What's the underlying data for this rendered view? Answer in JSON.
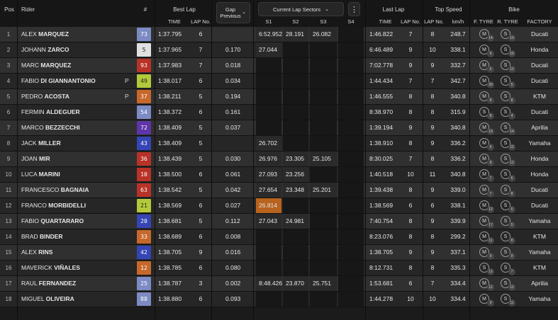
{
  "header": {
    "pos": "Pos",
    "rider": "Rider",
    "number": "#",
    "best_lap": "Best Lap",
    "time": "TIME",
    "lap_no": "LAP No.",
    "gap_dropdown": "Gap Previous",
    "sectors_dropdown": "Current Lap Sectors",
    "more": "⋮",
    "s1": "S1",
    "s2": "S2",
    "s3": "S3",
    "s4": "S4",
    "last_lap": "Last Lap",
    "last_time": "TIME",
    "last_lap_no": "LAP No.",
    "top_speed": "Top Speed",
    "top_lap_no": "LAP No.",
    "kmh": "km/h",
    "bike": "Bike",
    "f_tyre": "F. TYRE",
    "r_tyre": "R. TYRE",
    "factory": "FACTORY"
  },
  "rows": [
    {
      "pos": "1",
      "first": "ALEX ",
      "last": "MARQUEZ",
      "flag": "",
      "num": "73",
      "num_bg": "#7c8bc4",
      "num_fg": "#ffffff",
      "best": "1:37.795",
      "best_lap": "6",
      "gap": "",
      "s1": "6:52.952",
      "s2": "28.191",
      "s3": "26.082",
      "s4": "",
      "s1_bg": "#2a2a2a",
      "last_time": "1:46.822",
      "last_lap": "7",
      "ts_lap": "8",
      "kmh": "248.7",
      "ft": "M",
      "ft_sub": "14",
      "rt": "S",
      "rt_sub": "10",
      "factory": "Ducati"
    },
    {
      "pos": "2",
      "first": "JOHANN ",
      "last": "ZARCO",
      "flag": "",
      "num": "5",
      "num_bg": "#e0e0e0",
      "num_fg": "#222222",
      "best": "1:37.965",
      "best_lap": "7",
      "gap": "0.170",
      "s1": "27.044",
      "s2": "",
      "s3": "",
      "s4": "",
      "s1_bg": "#2a2a2a",
      "last_time": "6:46.489",
      "last_lap": "9",
      "ts_lap": "10",
      "kmh": "338.1",
      "ft": "M",
      "ft_sub": "9",
      "rt": "S",
      "rt_sub": "10",
      "factory": "Honda"
    },
    {
      "pos": "3",
      "first": "MARC ",
      "last": "MARQUEZ",
      "flag": "",
      "num": "93",
      "num_bg": "#b83227",
      "num_fg": "#ffffff",
      "best": "1:37.983",
      "best_lap": "7",
      "gap": "0.018",
      "s1": "",
      "s2": "",
      "s3": "",
      "s4": "",
      "s1_bg": "#2a2a2a",
      "last_time": "7:02.778",
      "last_lap": "9",
      "ts_lap": "9",
      "kmh": "332.7",
      "ft": "M",
      "ft_sub": "6",
      "rt": "S",
      "rt_sub": "12",
      "factory": "Ducati"
    },
    {
      "pos": "4",
      "first": "FABIO ",
      "last": "DI GIANNANTONIO",
      "flag": "P",
      "num": "49",
      "num_bg": "#b3c93a",
      "num_fg": "#222222",
      "best": "1:38.017",
      "best_lap": "6",
      "gap": "0.034",
      "s1": "",
      "s2": "",
      "s3": "",
      "s4": "",
      "s1_bg": "#2a2a2a",
      "last_time": "1:44.434",
      "last_lap": "7",
      "ts_lap": "7",
      "kmh": "342.7",
      "ft": "M",
      "ft_sub": "20",
      "rt": "S",
      "rt_sub": "5",
      "factory": "Ducati"
    },
    {
      "pos": "5",
      "first": "PEDRO ",
      "last": "ACOSTA",
      "flag": "P",
      "num": "37",
      "num_bg": "#c7682b",
      "num_fg": "#ffffff",
      "best": "1:38.211",
      "best_lap": "5",
      "gap": "0.194",
      "s1": "",
      "s2": "",
      "s3": "",
      "s4": "",
      "s1_bg": "#2a2a2a",
      "last_time": "1:46.555",
      "last_lap": "8",
      "ts_lap": "8",
      "kmh": "340.8",
      "ft": "M",
      "ft_sub": "8",
      "rt": "S",
      "rt_sub": "8",
      "factory": "KTM"
    },
    {
      "pos": "6",
      "first": "FERMIN ",
      "last": "ALDEGUER",
      "flag": "",
      "num": "54",
      "num_bg": "#7c8bc4",
      "num_fg": "#ffffff",
      "best": "1:38.372",
      "best_lap": "6",
      "gap": "0.161",
      "s1": "",
      "s2": "",
      "s3": "",
      "s4": "",
      "s1_bg": "#2a2a2a",
      "last_time": "8:38.970",
      "last_lap": "8",
      "ts_lap": "8",
      "kmh": "315.9",
      "ft": "S",
      "ft_sub": "8",
      "rt": "S",
      "rt_sub": "4",
      "factory": "Ducati"
    },
    {
      "pos": "7",
      "first": "MARCO ",
      "last": "BEZZECCHI",
      "flag": "",
      "num": "72",
      "num_bg": "#5e35a8",
      "num_fg": "#ffffff",
      "best": "1:38.409",
      "best_lap": "5",
      "gap": "0.037",
      "s1": "",
      "s2": "",
      "s3": "",
      "s4": "",
      "s1_bg": "#2a2a2a",
      "last_time": "1:39.194",
      "last_lap": "9",
      "ts_lap": "9",
      "kmh": "340.8",
      "ft": "M",
      "ft_sub": "19",
      "rt": "S",
      "rt_sub": "14",
      "factory": "Aprilia"
    },
    {
      "pos": "8",
      "first": "JACK ",
      "last": "MILLER",
      "flag": "",
      "num": "43",
      "num_bg": "#3545b5",
      "num_fg": "#ffffff",
      "best": "1:38.409",
      "best_lap": "5",
      "gap": "",
      "s1": "26.702",
      "s2": "",
      "s3": "",
      "s4": "",
      "s1_bg": "#2a2a2a",
      "last_time": "1:38.910",
      "last_lap": "8",
      "ts_lap": "9",
      "kmh": "336.2",
      "ft": "M",
      "ft_sub": "9",
      "rt": "S",
      "rt_sub": "12",
      "factory": "Yamaha"
    },
    {
      "pos": "9",
      "first": "JOAN ",
      "last": "MIR",
      "flag": "",
      "num": "36",
      "num_bg": "#b83227",
      "num_fg": "#ffffff",
      "best": "1:38.439",
      "best_lap": "5",
      "gap": "0.030",
      "s1": "26.976",
      "s2": "23.305",
      "s3": "25.105",
      "s4": "",
      "s1_bg": "#2a2a2a",
      "last_time": "8:30.025",
      "last_lap": "7",
      "ts_lap": "8",
      "kmh": "336.2",
      "ft": "M",
      "ft_sub": "8",
      "rt": "S",
      "rt_sub": "12",
      "factory": "Honda"
    },
    {
      "pos": "10",
      "first": "LUCA ",
      "last": "MARINI",
      "flag": "",
      "num": "10",
      "num_bg": "#b83227",
      "num_fg": "#ffffff",
      "best": "1:38.500",
      "best_lap": "6",
      "gap": "0.061",
      "s1": "27.093",
      "s2": "23.256",
      "s3": "",
      "s4": "",
      "s1_bg": "#2a2a2a",
      "last_time": "1:40.518",
      "last_lap": "10",
      "ts_lap": "11",
      "kmh": "340.8",
      "ft": "M",
      "ft_sub": "7",
      "rt": "S",
      "rt_sub": "6",
      "factory": "Honda"
    },
    {
      "pos": "11",
      "first": "FRANCESCO ",
      "last": "BAGNAIA",
      "flag": "",
      "num": "63",
      "num_bg": "#b83227",
      "num_fg": "#ffffff",
      "best": "1:38.542",
      "best_lap": "5",
      "gap": "0.042",
      "s1": "27.654",
      "s2": "23.348",
      "s3": "25.201",
      "s4": "",
      "s1_bg": "#2a2a2a",
      "last_time": "1:39.438",
      "last_lap": "8",
      "ts_lap": "9",
      "kmh": "339.0",
      "ft": "M",
      "ft_sub": "7",
      "rt": "S",
      "rt_sub": "8",
      "factory": "Ducati"
    },
    {
      "pos": "12",
      "first": "FRANCO ",
      "last": "MORBIDELLI",
      "flag": "",
      "num": "21",
      "num_bg": "#b3c93a",
      "num_fg": "#222222",
      "best": "1:38.569",
      "best_lap": "6",
      "gap": "0.027",
      "s1": "26.814",
      "s2": "",
      "s3": "",
      "s4": "",
      "s1_bg": "#b8631e",
      "last_time": "1:38.569",
      "last_lap": "6",
      "ts_lap": "6",
      "kmh": "338.1",
      "ft": "M",
      "ft_sub": "12",
      "rt": "S",
      "rt_sub": "5",
      "factory": "Ducati"
    },
    {
      "pos": "13",
      "first": "FABIO ",
      "last": "QUARTARARO",
      "flag": "",
      "num": "20",
      "num_bg": "#3545b5",
      "num_fg": "#ffffff",
      "best": "1:38.681",
      "best_lap": "5",
      "gap": "0.112",
      "s1": "27.043",
      "s2": "24.981",
      "s3": "",
      "s4": "",
      "s1_bg": "#2a2a2a",
      "last_time": "7:40.754",
      "last_lap": "8",
      "ts_lap": "9",
      "kmh": "339.9",
      "ft": "M",
      "ft_sub": "17",
      "rt": "S",
      "rt_sub": "5",
      "factory": "Yamaha"
    },
    {
      "pos": "14",
      "first": "BRAD ",
      "last": "BINDER",
      "flag": "",
      "num": "33",
      "num_bg": "#c7682b",
      "num_fg": "#ffffff",
      "best": "1:38.689",
      "best_lap": "6",
      "gap": "0.008",
      "s1": "",
      "s2": "",
      "s3": "",
      "s4": "",
      "s1_bg": "#2a2a2a",
      "last_time": "8:23.076",
      "last_lap": "8",
      "ts_lap": "8",
      "kmh": "299.2",
      "ft": "M",
      "ft_sub": "11",
      "rt": "S",
      "rt_sub": "8",
      "factory": "KTM"
    },
    {
      "pos": "15",
      "first": "ALEX ",
      "last": "RINS",
      "flag": "",
      "num": "42",
      "num_bg": "#3545b5",
      "num_fg": "#ffffff",
      "best": "1:38.705",
      "best_lap": "9",
      "gap": "0.016",
      "s1": "",
      "s2": "",
      "s3": "",
      "s4": "",
      "s1_bg": "#2a2a2a",
      "last_time": "1:38.705",
      "last_lap": "9",
      "ts_lap": "9",
      "kmh": "337.1",
      "ft": "M",
      "ft_sub": "9",
      "rt": "S",
      "rt_sub": "9",
      "factory": "Yamaha"
    },
    {
      "pos": "16",
      "first": "MAVERICK ",
      "last": "VIÑALES",
      "flag": "",
      "num": "12",
      "num_bg": "#c7682b",
      "num_fg": "#ffffff",
      "best": "1:38.785",
      "best_lap": "6",
      "gap": "0.080",
      "s1": "",
      "s2": "",
      "s3": "",
      "s4": "",
      "s1_bg": "#2a2a2a",
      "last_time": "8:12.731",
      "last_lap": "8",
      "ts_lap": "8",
      "kmh": "335.3",
      "ft": "S",
      "ft_sub": "12",
      "rt": "S",
      "rt_sub": "7",
      "factory": "KTM"
    },
    {
      "pos": "17",
      "first": "RAUL ",
      "last": "FERNANDEZ",
      "flag": "",
      "num": "25",
      "num_bg": "#7c8bc4",
      "num_fg": "#ffffff",
      "best": "1:38.787",
      "best_lap": "3",
      "gap": "0.002",
      "s1": "8:48.426",
      "s2": "23.870",
      "s3": "25.751",
      "s4": "",
      "s1_bg": "#2a2a2a",
      "last_time": "1:53.681",
      "last_lap": "6",
      "ts_lap": "7",
      "kmh": "334.4",
      "ft": "M",
      "ft_sub": "12",
      "rt": "S",
      "rt_sub": "12",
      "factory": "Aprilia"
    },
    {
      "pos": "18",
      "first": "MIGUEL ",
      "last": "OLIVEIRA",
      "flag": "",
      "num": "88",
      "num_bg": "#7c8bc4",
      "num_fg": "#ffffff",
      "best": "1:38.880",
      "best_lap": "6",
      "gap": "0.093",
      "s1": "",
      "s2": "",
      "s3": "",
      "s4": "",
      "s1_bg": "#2a2a2a",
      "last_time": "1:44.278",
      "last_lap": "10",
      "ts_lap": "10",
      "kmh": "334.4",
      "ft": "M",
      "ft_sub": "9",
      "rt": "S",
      "rt_sub": "11",
      "factory": "Yamaha"
    }
  ]
}
